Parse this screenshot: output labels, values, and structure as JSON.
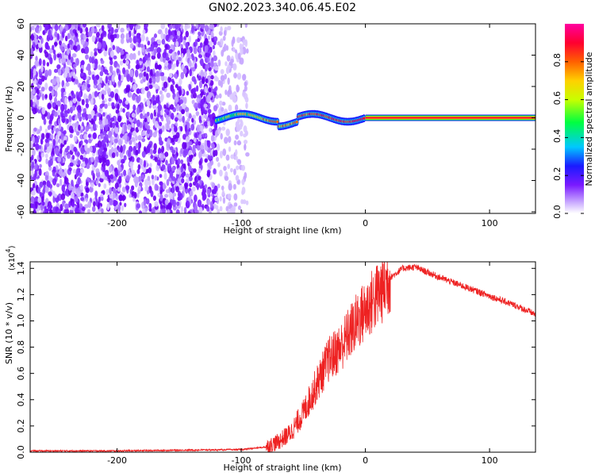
{
  "title": "GN02.2023.340.06.45.E02",
  "chart_data": [
    {
      "type": "heatmap",
      "xlabel": "Height of straight line (km)",
      "ylabel": "Frequency (Hz)",
      "xlim": [
        -270,
        137
      ],
      "ylim": [
        -61,
        60
      ],
      "xticks": [
        -200,
        -100,
        0,
        100
      ],
      "yticks": [
        60,
        40,
        20,
        0,
        -20,
        -40,
        -60
      ],
      "colorbar": {
        "label": "Normalized spectral amplitude",
        "range": [
          0,
          1
        ],
        "ticks": [
          0.0,
          0.2,
          0.4,
          0.6,
          0.8
        ],
        "colors": [
          "#ffffff",
          "#c8a8ff",
          "#7a1aff",
          "#1a1aff",
          "#00c8ff",
          "#00ff40",
          "#c8ff00",
          "#ffd000",
          "#ff6000",
          "#ff0030",
          "#ff00a0"
        ]
      },
      "features": {
        "broadband_noise_x_range": [
          -270,
          -95
        ],
        "dense_noise_x_range": [
          -270,
          -120
        ],
        "signal_line_frequency_hz": 0,
        "signal_start_km": -120,
        "strong_signal_start_km": 0
      }
    },
    {
      "type": "line",
      "xlabel": "Height of straight line (km)",
      "ylabel": "SNR (10 * v/v)",
      "y_scale_note": "(x10",
      "y_scale_exponent": "4",
      "xlim": [
        -270,
        137
      ],
      "ylim": [
        0,
        1.45
      ],
      "xticks": [
        -200,
        -100,
        0,
        100
      ],
      "yticks": [
        0.0,
        0.2,
        0.4,
        0.6,
        0.8,
        1.0,
        1.2,
        1.4
      ],
      "color": "#ee2222",
      "series": [
        {
          "x": [
            -270,
            -200,
            -100,
            -80,
            -70,
            -60,
            -50,
            -40,
            -30,
            -20,
            -10,
            0,
            10,
            20,
            30,
            40,
            50,
            60,
            80,
            100,
            120,
            137
          ],
          "y": [
            0.01,
            0.01,
            0.02,
            0.04,
            0.08,
            0.15,
            0.3,
            0.5,
            0.7,
            0.8,
            0.95,
            1.08,
            1.2,
            1.33,
            1.4,
            1.41,
            1.37,
            1.33,
            1.26,
            1.19,
            1.12,
            1.05
          ]
        }
      ]
    }
  ]
}
